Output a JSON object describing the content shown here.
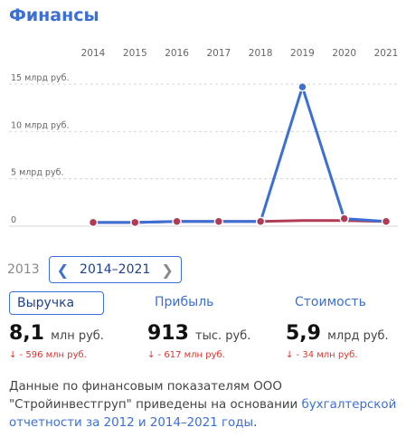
{
  "header": {
    "title": "Финансы"
  },
  "chart_data": {
    "type": "line",
    "categories": [
      "2014",
      "2015",
      "2016",
      "2017",
      "2018",
      "2019",
      "2020",
      "2021"
    ],
    "y_tick_labels": [
      "15 млрд руб.",
      "10 млрд руб.",
      "5 млрд руб.",
      "0"
    ],
    "y_ticks": [
      15,
      10,
      5,
      0
    ],
    "ylim": [
      0,
      15
    ],
    "series": [
      {
        "values": [
          0.4,
          0.4,
          0.5,
          0.5,
          0.5,
          14.7,
          0.8,
          0.5
        ]
      }
    ],
    "colors": {
      "line": "#3b6fd6",
      "fill": "#b03b55",
      "point": "#b03b55",
      "grid": "#d6d6d6"
    }
  },
  "pager": {
    "prev_year": "2013",
    "range": "2014–2021",
    "prev_icon": "chevron-left-icon",
    "next_icon": "chevron-right-icon"
  },
  "metrics": [
    {
      "tab": "Выручка",
      "value": "8,1",
      "unit": "млн руб.",
      "change": "↓ - 596 млн руб."
    },
    {
      "tab": "Прибыль",
      "value": "913",
      "unit": "тыс. руб.",
      "change": "↓ - 617 млн руб."
    },
    {
      "tab": "Стоимость",
      "value": "5,9",
      "unit": "млрд руб.",
      "change": "↓ - 34 млн руб."
    }
  ],
  "note": {
    "text": "Данные по финансовым показателям ООО \"Стройинвестгруп\" приведены на основании ",
    "link": "бухгалтерской отчетности за 2012 и 2014–2021 годы",
    "end": "."
  }
}
